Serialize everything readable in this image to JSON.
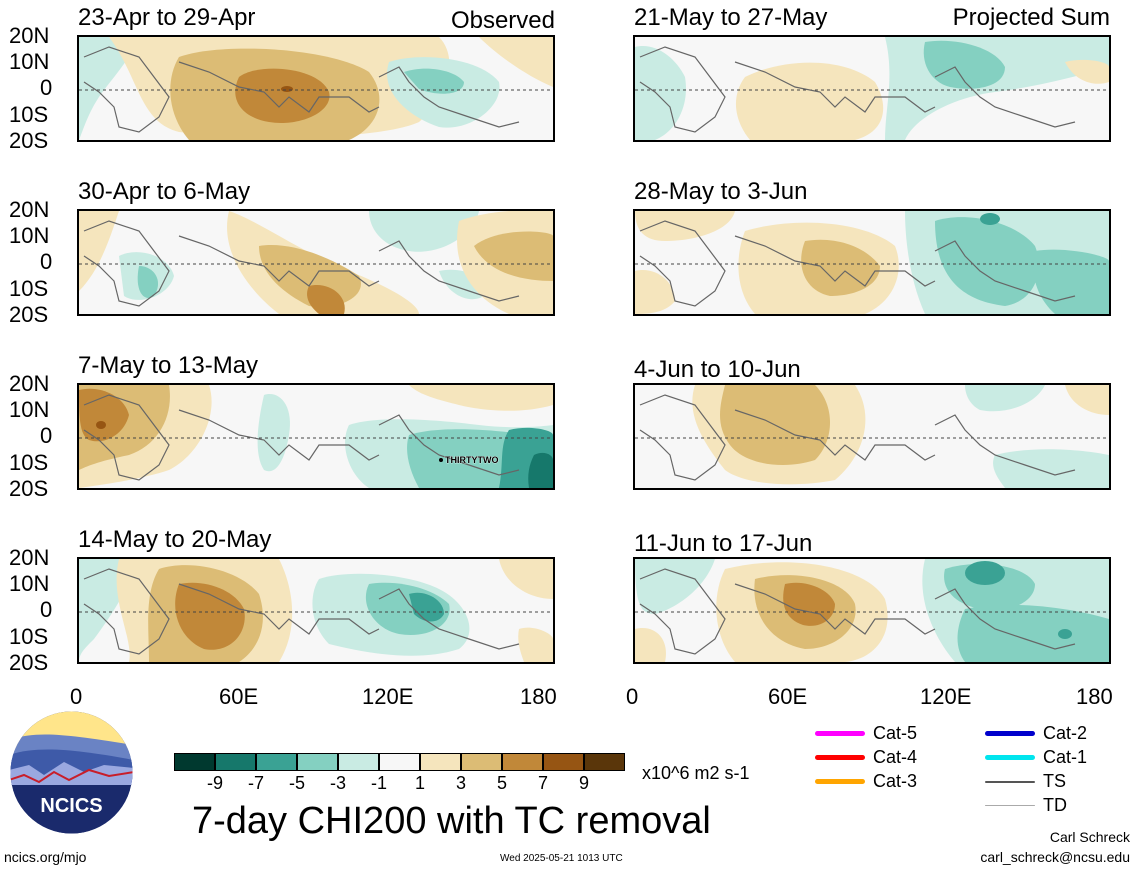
{
  "panels": {
    "observed_label": "Observed",
    "projected_label": "Projected Sum",
    "left_titles": [
      "23-Apr to 29-Apr",
      "30-Apr to 6-May",
      "7-May to 13-May",
      "14-May to 20-May"
    ],
    "right_titles": [
      "21-May to 27-May",
      "28-May to 3-Jun",
      "4-Jun to 10-Jun",
      "11-Jun to 17-Jun"
    ],
    "storm_label": "THIRTYTWO"
  },
  "axes": {
    "lat_ticks": [
      "20N",
      "10N",
      "0",
      "10S",
      "20S"
    ],
    "lon_ticks": [
      "0",
      "60E",
      "120E",
      "180"
    ]
  },
  "colorbar": {
    "colors": [
      "#00392f",
      "#16786b",
      "#3aa294",
      "#84d0c1",
      "#c9ebe3",
      "#f7f7f7",
      "#f5e5bd",
      "#dcbc75",
      "#c18839",
      "#965513",
      "#5a360a"
    ],
    "ticks": [
      "-9",
      "-7",
      "-5",
      "-3",
      "-1",
      "1",
      "3",
      "5",
      "7",
      "9"
    ],
    "units": "x10^6 m2 s-1"
  },
  "main_title": "7-day CHI200 with TC removal",
  "legend": [
    {
      "label": "Cat-5",
      "color": "#ff00ff"
    },
    {
      "label": "Cat-4",
      "color": "#ff0000"
    },
    {
      "label": "Cat-3",
      "color": "#ffa500"
    },
    {
      "label": "Cat-2",
      "color": "#0000cc"
    },
    {
      "label": "Cat-1",
      "color": "#00e5ee"
    },
    {
      "label": "TS",
      "color": "#555555"
    },
    {
      "label": "TD",
      "color": "#aaaaaa"
    }
  ],
  "logo_text": "NCICS",
  "footer": {
    "url": "ncics.org/mjo",
    "timestamp": "Wed 2025-05-21 1013 UTC",
    "author": "Carl Schreck",
    "email": "carl_schreck@ncsu.edu"
  }
}
